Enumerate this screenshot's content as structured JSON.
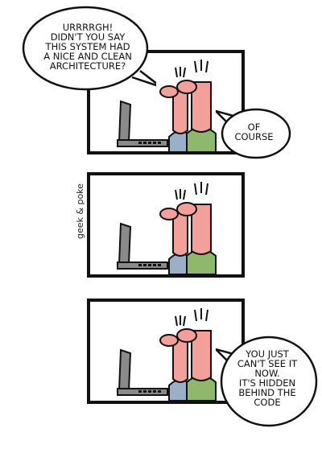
{
  "comic": {
    "panel_1": {
      "bubble_left": "URRRRGH!\nDIDN'T YOU SAY\nTHIS SYSTEM HAD\nA NICE AND CLEAN\nARCHITECTURE?",
      "bubble_right": "OF\nCOURSE"
    },
    "panel_2": {
      "signature": "geek & poke"
    },
    "panel_3": {
      "bubble_right": "YOU JUST\nCAN'T SEE IT\nNOW.\nIT'S HIDDEN\nBEHIND THE\nCODE"
    }
  },
  "colors": {
    "skin": "#f4a09a",
    "shirt_blue": "#9ab0c8",
    "shirt_green": "#8fb96a",
    "laptop_gray": "#8a8a8a",
    "ink": "#111111"
  }
}
